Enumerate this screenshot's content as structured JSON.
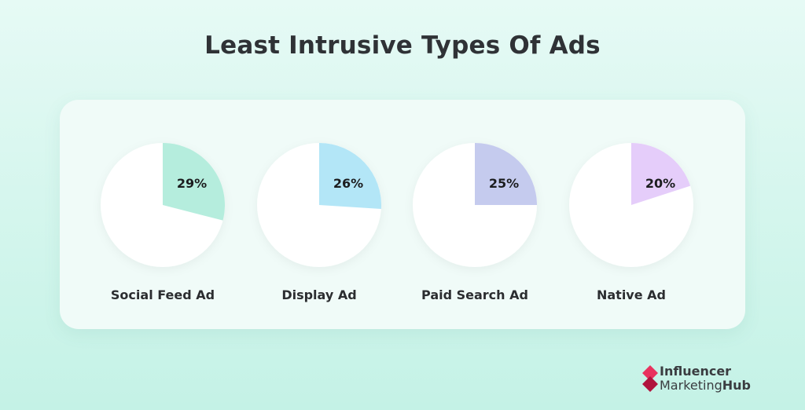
{
  "chart_data": {
    "type": "pie",
    "title": "Least Intrusive Types Of Ads",
    "categories": [
      "Social Feed Ad",
      "Display Ad",
      "Paid Search Ad",
      "Native Ad"
    ],
    "values": [
      29,
      26,
      25,
      20
    ],
    "value_labels": [
      "29%",
      "26%",
      "25%",
      "20%"
    ],
    "colors": [
      "#b5eddd",
      "#b3e6f7",
      "#c5cbee",
      "#e5cdfa"
    ]
  },
  "logo": {
    "line1": "Influencer",
    "line2a": "Marketing",
    "line2b": "Hub",
    "mark_color": "#e8325e"
  }
}
